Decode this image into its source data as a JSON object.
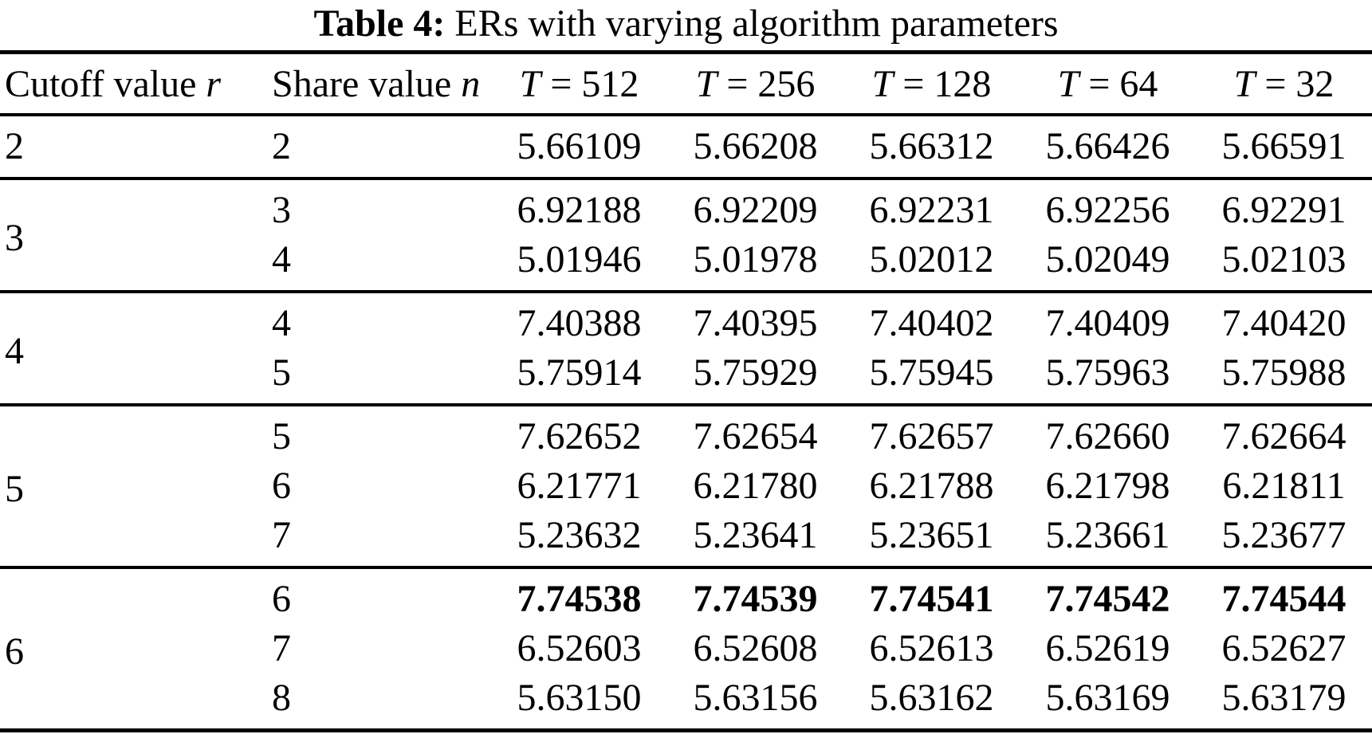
{
  "page": {
    "background": "#ffffff",
    "text_color": "#000000",
    "rule_color": "#000000"
  },
  "caption": {
    "label": "Table 4:",
    "text": " ERs with varying algorithm parameters"
  },
  "table": {
    "col_headers": {
      "cutoff": {
        "text": "Cutoff value ",
        "var": "r"
      },
      "share": {
        "text": "Share value ",
        "var": "n"
      },
      "t_cols": [
        {
          "var": "T",
          "value": " = 512"
        },
        {
          "var": "T",
          "value": " = 256"
        },
        {
          "var": "T",
          "value": " = 128"
        },
        {
          "var": "T",
          "value": " = 64"
        },
        {
          "var": "T",
          "value": " = 32"
        }
      ]
    },
    "groups": [
      {
        "r": "2",
        "rows": [
          {
            "n": "2",
            "bold": false,
            "values": [
              "5.66109",
              "5.66208",
              "5.66312",
              "5.66426",
              "5.66591"
            ]
          }
        ]
      },
      {
        "r": "3",
        "rows": [
          {
            "n": "3",
            "bold": false,
            "values": [
              "6.92188",
              "6.92209",
              "6.92231",
              "6.92256",
              "6.92291"
            ]
          },
          {
            "n": "4",
            "bold": false,
            "values": [
              "5.01946",
              "5.01978",
              "5.02012",
              "5.02049",
              "5.02103"
            ]
          }
        ]
      },
      {
        "r": "4",
        "rows": [
          {
            "n": "4",
            "bold": false,
            "values": [
              "7.40388",
              "7.40395",
              "7.40402",
              "7.40409",
              "7.40420"
            ]
          },
          {
            "n": "5",
            "bold": false,
            "values": [
              "5.75914",
              "5.75929",
              "5.75945",
              "5.75963",
              "5.75988"
            ]
          }
        ]
      },
      {
        "r": "5",
        "rows": [
          {
            "n": "5",
            "bold": false,
            "values": [
              "7.62652",
              "7.62654",
              "7.62657",
              "7.62660",
              "7.62664"
            ]
          },
          {
            "n": "6",
            "bold": false,
            "values": [
              "6.21771",
              "6.21780",
              "6.21788",
              "6.21798",
              "6.21811"
            ]
          },
          {
            "n": "7",
            "bold": false,
            "values": [
              "5.23632",
              "5.23641",
              "5.23651",
              "5.23661",
              "5.23677"
            ]
          }
        ]
      },
      {
        "r": "6",
        "rows": [
          {
            "n": "6",
            "bold": true,
            "values": [
              "7.74538",
              "7.74539",
              "7.74541",
              "7.74542",
              "7.74544"
            ]
          },
          {
            "n": "7",
            "bold": false,
            "values": [
              "6.52603",
              "6.52608",
              "6.52613",
              "6.52619",
              "6.52627"
            ]
          },
          {
            "n": "8",
            "bold": false,
            "values": [
              "5.63150",
              "5.63156",
              "5.63162",
              "5.63169",
              "5.63179"
            ]
          }
        ]
      }
    ]
  },
  "chart_data": {
    "type": "table",
    "title": "Table 4: ERs with varying algorithm parameters",
    "columns": [
      "Cutoff value r",
      "Share value n",
      "T = 512",
      "T = 256",
      "T = 128",
      "T = 64",
      "T = 32"
    ],
    "rows": [
      [
        2,
        2,
        5.66109,
        5.66208,
        5.66312,
        5.66426,
        5.66591
      ],
      [
        3,
        3,
        6.92188,
        6.92209,
        6.92231,
        6.92256,
        6.92291
      ],
      [
        3,
        4,
        5.01946,
        5.01978,
        5.02012,
        5.02049,
        5.02103
      ],
      [
        4,
        4,
        7.40388,
        7.40395,
        7.40402,
        7.40409,
        7.4042
      ],
      [
        4,
        5,
        5.75914,
        5.75929,
        5.75945,
        5.75963,
        5.75988
      ],
      [
        5,
        5,
        7.62652,
        7.62654,
        7.62657,
        7.6266,
        7.62664
      ],
      [
        5,
        6,
        6.21771,
        6.2178,
        6.21788,
        6.21798,
        6.21811
      ],
      [
        5,
        7,
        5.23632,
        5.23641,
        5.23651,
        5.23661,
        5.23677
      ],
      [
        6,
        6,
        7.74538,
        7.74539,
        7.74541,
        7.74542,
        7.74544
      ],
      [
        6,
        7,
        6.52603,
        6.52608,
        6.52613,
        6.52619,
        6.52627
      ],
      [
        6,
        8,
        5.6315,
        5.63156,
        5.63162,
        5.63169,
        5.63179
      ]
    ],
    "bold_row_index": 8
  }
}
